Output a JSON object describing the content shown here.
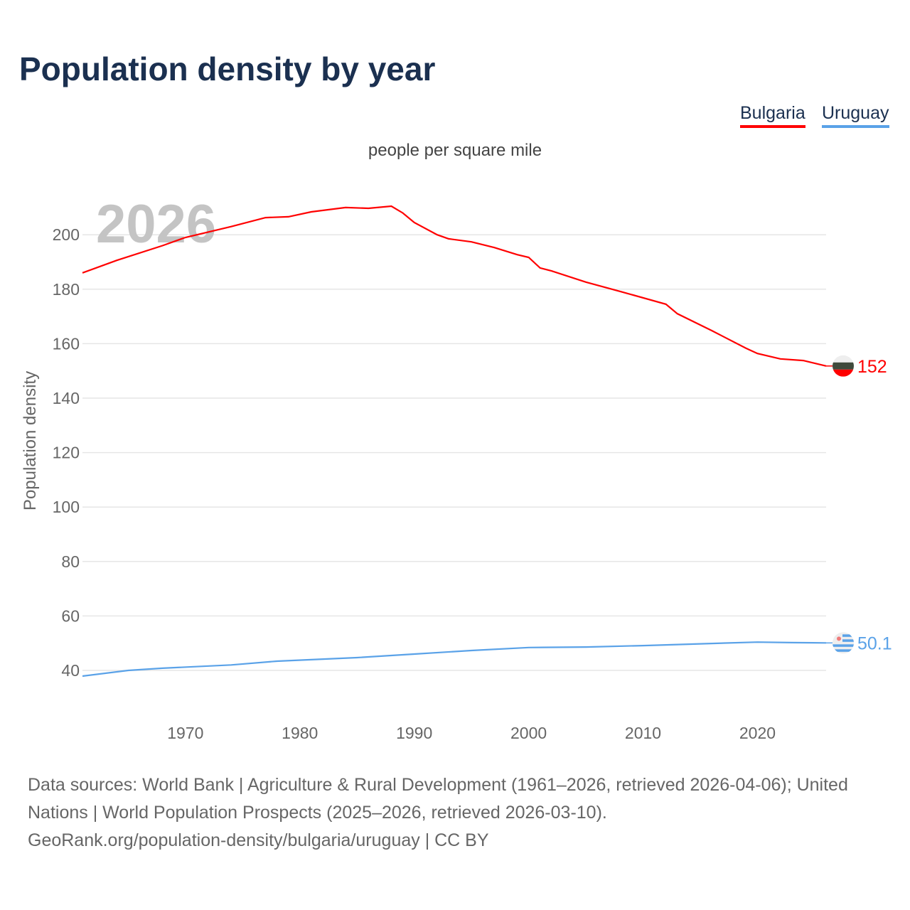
{
  "chart_data": {
    "type": "line",
    "title": "Population density by year",
    "subtitle": "people per square mile",
    "ylabel": "Population density",
    "xlabel": "",
    "year_watermark": "2026",
    "xlim": [
      1961,
      2026
    ],
    "ylim": [
      40,
      210
    ],
    "x_ticks": [
      1970,
      1980,
      1990,
      2000,
      2010,
      2020
    ],
    "y_ticks": [
      40,
      60,
      80,
      100,
      120,
      140,
      160,
      180,
      200
    ],
    "grid": true,
    "legend_placement": "top-right",
    "series": [
      {
        "name": "Bulgaria",
        "color": "#ff0000",
        "end_label": "152",
        "flag_icon": "bulgaria-flag",
        "x": [
          1961,
          1964,
          1968,
          1970,
          1974,
          1977,
          1979,
          1981,
          1984,
          1986,
          1988,
          1989,
          1990,
          1992,
          1993,
          1995,
          1997,
          1999,
          2000,
          2001,
          2002,
          2005,
          2008,
          2012,
          2013,
          2016,
          2019,
          2020,
          2022,
          2024,
          2026
        ],
        "y": [
          186,
          190.6,
          196,
          199,
          203,
          206.3,
          206.6,
          208.4,
          210,
          209.7,
          210.5,
          208,
          204.5,
          200,
          198.5,
          197.4,
          195.3,
          192.7,
          191.7,
          187.8,
          186.7,
          182.6,
          179.2,
          174.5,
          171,
          164.8,
          158.3,
          156.4,
          154.4,
          153.8,
          151.8
        ]
      },
      {
        "name": "Uruguay",
        "color": "#5aa2e8",
        "end_label": "50.1",
        "flag_icon": "uruguay-flag",
        "x": [
          1961,
          1965,
          1968,
          1974,
          1978,
          1985,
          1990,
          1995,
          2000,
          2005,
          2010,
          2016,
          2020,
          2023,
          2026
        ],
        "y": [
          37.9,
          40,
          40.8,
          42,
          43.4,
          44.7,
          46,
          47.3,
          48.4,
          48.6,
          49.1,
          49.9,
          50.4,
          50.2,
          50.1
        ]
      }
    ]
  },
  "source": {
    "line1": "Data sources: World Bank | Agriculture & Rural Development (1961–2026, retrieved 2026-04-06); United Nations | World Population Prospects (2025–2026, retrieved 2026-03-10).",
    "line2": "GeoRank.org/population-density/bulgaria/uruguay | CC BY"
  }
}
